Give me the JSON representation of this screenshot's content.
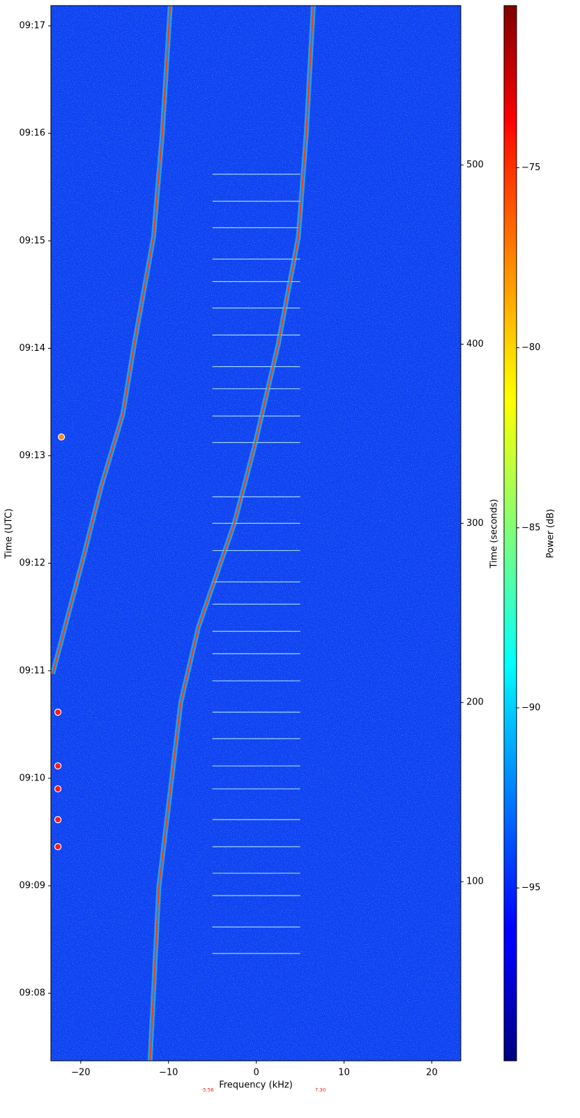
{
  "chart_data": {
    "type": "spectrogram",
    "xlabel": "Frequency (kHz)",
    "ylabel": "Time (UTC)",
    "y2label": "Time (seconds)",
    "colorbar_label": "Power (dB)",
    "colormap": "jet",
    "background_color": "#0c3ff0",
    "xlim": [
      -23.4,
      23.3
    ],
    "xticks": [
      {
        "value": -20,
        "label": "−20"
      },
      {
        "value": -10,
        "label": "−10"
      },
      0,
      10,
      20
    ],
    "ylim": [
      0,
      589
    ],
    "yticks": [
      {
        "value": 37.7,
        "label": "09:08"
      },
      {
        "value": 97.7,
        "label": "09:09"
      },
      {
        "value": 157.7,
        "label": "09:10"
      },
      {
        "value": 217.7,
        "label": "09:11"
      },
      {
        "value": 277.7,
        "label": "09:12"
      },
      {
        "value": 337.7,
        "label": "09:13"
      },
      {
        "value": 397.7,
        "label": "09:14"
      },
      {
        "value": 457.7,
        "label": "09:15"
      },
      {
        "value": 517.7,
        "label": "09:16"
      },
      {
        "value": 577.7,
        "label": "09:17"
      }
    ],
    "y2lim": [
      0,
      589
    ],
    "y2ticks": [
      100,
      200,
      300,
      400,
      500
    ],
    "clim": [
      -99.8,
      -70.5
    ],
    "cticks": [
      {
        "value": -95,
        "label": "−95"
      },
      {
        "value": -90,
        "label": "−90"
      },
      {
        "value": -85,
        "label": "−85"
      },
      {
        "value": -80,
        "label": "−80"
      },
      {
        "value": -75,
        "label": "−75"
      }
    ],
    "tracks": [
      {
        "color": "#ff3a00",
        "halo": "#22e8ff",
        "freq": [
          -12.1,
          -11.1,
          -8.6,
          -6.6,
          -2.5,
          -0.2,
          2.5,
          4.8,
          5.7,
          6.5
        ],
        "time": [
          0,
          97,
          200,
          242,
          300,
          343,
          400,
          460,
          518,
          589
        ]
      },
      {
        "color": "#ff3a00",
        "halo": "#22e8ff",
        "freq": [
          -23.2,
          -19.7,
          -17.7,
          -15.2,
          -13.9,
          -11.7,
          -10.7,
          -9.8
        ],
        "time": [
          216,
          281,
          320,
          361,
          400,
          460,
          518,
          589
        ]
      }
    ],
    "pulses": {
      "color": "#b8ecff",
      "freq_range": [
        -5,
        5
      ],
      "times": [
        59.9,
        74.7,
        92.2,
        104.7,
        119.5,
        134.6,
        151.8,
        164.6,
        179.8,
        194.6,
        212.1,
        227.2,
        239.7,
        254.9,
        267.3,
        284.8,
        300,
        314.8,
        345.1,
        359.9,
        375.1,
        387.5,
        405.1,
        420.2,
        435,
        447.5,
        465,
        479.8,
        494.9
      ]
    },
    "markers": {
      "freq": [
        -22.6,
        -22.6,
        -22.6,
        -22.6,
        -22.6,
        -22.2
      ],
      "time": [
        194.6,
        164.6,
        151.8,
        134.6,
        119.5,
        348.2
      ],
      "colors": [
        "#ff1a1a",
        "#ff1a1a",
        "#ff1a1a",
        "#ff1a1a",
        "#ff1a1a",
        "#ff8c1a"
      ]
    },
    "annotations": {
      "color": "#e8231c",
      "values": [
        -5.56,
        {
          "value": 7.3,
          "label": "7.30"
        }
      ]
    }
  }
}
